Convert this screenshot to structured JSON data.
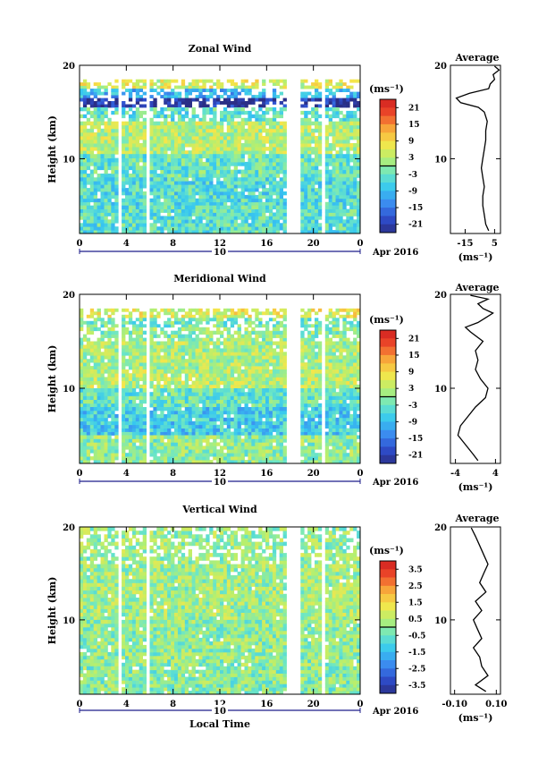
{
  "chart_data": [
    {
      "type": "heatmap",
      "title": "Zonal Wind",
      "ylabel": "Height (km)",
      "y_ticks": [
        10,
        20
      ],
      "ylim": [
        2,
        20
      ],
      "x_ticks": [
        "0",
        "4",
        "8",
        "12",
        "16",
        "20",
        "0"
      ],
      "xlim": [
        0,
        24
      ],
      "date_label": "10",
      "month_label": "Apr 2016",
      "colorbar_unit": "(ms⁻¹)",
      "colorbar_ticks": [
        "21",
        "15",
        "9",
        "3",
        "-3",
        "-9",
        "-15",
        "-21"
      ],
      "colorbar_range": [
        -24,
        24
      ],
      "bands": [
        {
          "h": [
            17.5,
            18.5
          ],
          "value": 5
        },
        {
          "h": [
            16.5,
            17.5
          ],
          "value": -10
        },
        {
          "h": [
            15.5,
            16.5
          ],
          "value": -22
        },
        {
          "h": [
            14,
            15.5
          ],
          "value": -4
        },
        {
          "h": [
            10.5,
            14
          ],
          "value": 3
        },
        {
          "h": [
            8,
            10.5
          ],
          "value": -3
        },
        {
          "h": [
            5,
            8
          ],
          "value": -5
        },
        {
          "h": [
            2,
            5
          ],
          "value": -4
        }
      ],
      "gaps": [
        [
          3.3,
          3.6
        ],
        [
          5.7,
          6
        ],
        [
          17.8,
          18.8
        ],
        [
          20.6,
          21
        ]
      ],
      "average": {
        "title": "Average",
        "x_ticks": [
          "-15",
          "5"
        ],
        "xlim": [
          -25,
          9
        ],
        "unit": "(ms⁻¹)",
        "heights": [
          2.3,
          3,
          4,
          5,
          6,
          7,
          8,
          9,
          10,
          11,
          12,
          13,
          14,
          15,
          15.5,
          16,
          16.5,
          17,
          17.5,
          18,
          18.5,
          19,
          19.5,
          19.9
        ],
        "values": [
          1,
          -1,
          -2,
          -3,
          -3,
          -2,
          -3,
          -4,
          -3,
          -2,
          -1,
          -1,
          0,
          -2,
          -6,
          -18,
          -21,
          -12,
          1,
          2,
          5,
          4,
          8,
          5
        ]
      }
    },
    {
      "type": "heatmap",
      "title": "Meridional Wind",
      "ylabel": "Height (km)",
      "y_ticks": [
        10,
        20
      ],
      "ylim": [
        2,
        20
      ],
      "x_ticks": [
        "0",
        "4",
        "8",
        "12",
        "16",
        "20",
        "0"
      ],
      "xlim": [
        0,
        24
      ],
      "date_label": "10",
      "month_label": "Apr 2016",
      "colorbar_unit": "(ms⁻¹)",
      "colorbar_ticks": [
        "21",
        "15",
        "9",
        "3",
        "-3",
        "-9",
        "-15",
        "-21"
      ],
      "colorbar_range": [
        -24,
        24
      ],
      "bands": [
        {
          "h": [
            17.5,
            18.5
          ],
          "value": 6
        },
        {
          "h": [
            16.5,
            17.5
          ],
          "value": -2
        },
        {
          "h": [
            15,
            16.5
          ],
          "value": 0
        },
        {
          "h": [
            12,
            15
          ],
          "value": 2
        },
        {
          "h": [
            10,
            12
          ],
          "value": 3
        },
        {
          "h": [
            8,
            10
          ],
          "value": -3
        },
        {
          "h": [
            5,
            8
          ],
          "value": -7
        },
        {
          "h": [
            2,
            5
          ],
          "value": 0
        }
      ],
      "gaps": [
        [
          3.3,
          3.6
        ],
        [
          5.7,
          6
        ],
        [
          17.8,
          18.8
        ],
        [
          20.6,
          21
        ]
      ],
      "average": {
        "title": "Average",
        "x_ticks": [
          "-4",
          "4"
        ],
        "xlim": [
          -5,
          5
        ],
        "unit": "(ms⁻¹)",
        "heights": [
          2.3,
          3,
          4,
          5,
          6,
          7,
          8,
          9,
          10,
          11,
          12,
          13,
          14,
          15,
          16,
          16.5,
          17,
          17.5,
          18,
          18.5,
          19,
          19.5,
          19.9
        ],
        "values": [
          0.5,
          -0.5,
          -2,
          -3.5,
          -3,
          -1.5,
          0,
          2,
          2.5,
          1,
          0,
          0.5,
          0,
          1.5,
          -1,
          -2,
          0.5,
          2,
          3.5,
          1.5,
          0.5,
          2.5,
          -1
        ]
      }
    },
    {
      "type": "heatmap",
      "title": "Vertical Wind",
      "xlabel": "Local Time",
      "ylabel": "Height (km)",
      "y_ticks": [
        10,
        20
      ],
      "ylim": [
        2,
        20
      ],
      "x_ticks": [
        "0",
        "4",
        "8",
        "12",
        "16",
        "20",
        "0"
      ],
      "xlim": [
        0,
        24
      ],
      "date_label": "10",
      "month_label": "Apr 2016",
      "colorbar_unit": "(ms⁻¹)",
      "colorbar_ticks": [
        "3.5",
        "2.5",
        "1.5",
        "0.5",
        "-0.5",
        "-1.5",
        "-2.5",
        "-3.5"
      ],
      "colorbar_range": [
        -4,
        4
      ],
      "bands": [
        {
          "h": [
            16,
            20
          ],
          "value": 0.1
        },
        {
          "h": [
            10,
            16
          ],
          "value": 0.2
        },
        {
          "h": [
            5,
            10
          ],
          "value": 0
        },
        {
          "h": [
            2,
            5
          ],
          "value": -0.1
        }
      ],
      "gaps": [
        [
          3.3,
          3.6
        ],
        [
          5.7,
          6
        ],
        [
          17.8,
          18.8
        ],
        [
          20.6,
          21
        ]
      ],
      "average": {
        "title": "Average",
        "x_ticks": [
          "-0.10",
          "0.10"
        ],
        "xlim": [
          -0.12,
          0.12
        ],
        "unit": "(ms⁻¹)",
        "heights": [
          2.3,
          3,
          4,
          5,
          6,
          7,
          8,
          9,
          10,
          11,
          12,
          13,
          14,
          15,
          16,
          17,
          18,
          19,
          19.9
        ],
        "values": [
          0.05,
          0.0,
          0.06,
          0.03,
          0.02,
          -0.01,
          0.03,
          0.01,
          -0.01,
          0.03,
          0.0,
          0.05,
          0.02,
          0.04,
          0.06,
          0.04,
          0.02,
          0.0,
          -0.02
        ]
      }
    }
  ]
}
